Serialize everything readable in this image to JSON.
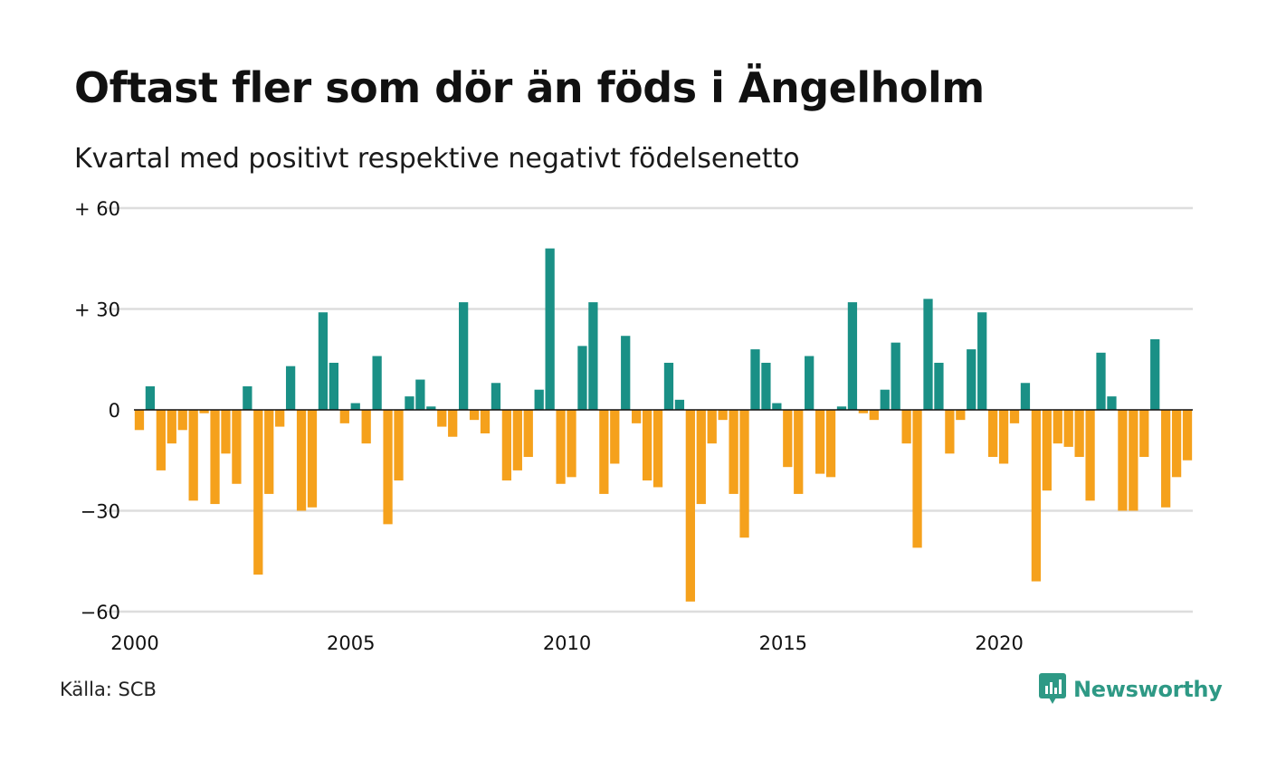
{
  "header": {
    "title": "Oftast fler som dör än föds i Ängelholm",
    "subtitle": "Kvartal med positivt respektive negativt födelsenetto"
  },
  "footer": {
    "source": "Källa: SCB",
    "brand": "Newsworthy"
  },
  "colors": {
    "positive": "#1a9086",
    "negative": "#f5a11c",
    "grid": "#dddddd",
    "brand": "#2e9985"
  },
  "chart_data": {
    "type": "bar",
    "y_ticks": [
      {
        "value": 60,
        "label": "+ 60"
      },
      {
        "value": 30,
        "label": "+ 30"
      },
      {
        "value": 0,
        "label": "0"
      },
      {
        "value": -30,
        "label": "−30"
      },
      {
        "value": -60,
        "label": "−60"
      }
    ],
    "ylim": [
      -60,
      60
    ],
    "x_ticks": [
      "2000",
      "2005",
      "2010",
      "2015",
      "2020"
    ],
    "first_year": 2000,
    "grid": true,
    "legend": "none",
    "values": [
      -6,
      7,
      -18,
      -10,
      -6,
      -27,
      -1,
      -28,
      -13,
      -22,
      7,
      -49,
      -25,
      -5,
      13,
      -30,
      -29,
      29,
      14,
      -4,
      2,
      -10,
      16,
      -34,
      -21,
      4,
      9,
      1,
      -5,
      -8,
      32,
      -3,
      -7,
      8,
      -21,
      -18,
      -14,
      6,
      48,
      -22,
      -20,
      19,
      32,
      -25,
      -16,
      22,
      -4,
      -21,
      -23,
      14,
      3,
      -57,
      -28,
      -10,
      -3,
      -25,
      -38,
      18,
      14,
      2,
      -17,
      -25,
      16,
      -19,
      -20,
      1,
      32,
      -1,
      -3,
      6,
      20,
      -10,
      -41,
      33,
      14,
      -13,
      -3,
      18,
      29,
      -14,
      -16,
      -4,
      8,
      -51,
      -24,
      -10,
      -11,
      -14,
      -27,
      17,
      4,
      -30,
      -30,
      -14,
      21,
      -29,
      -20,
      -15
    ]
  }
}
